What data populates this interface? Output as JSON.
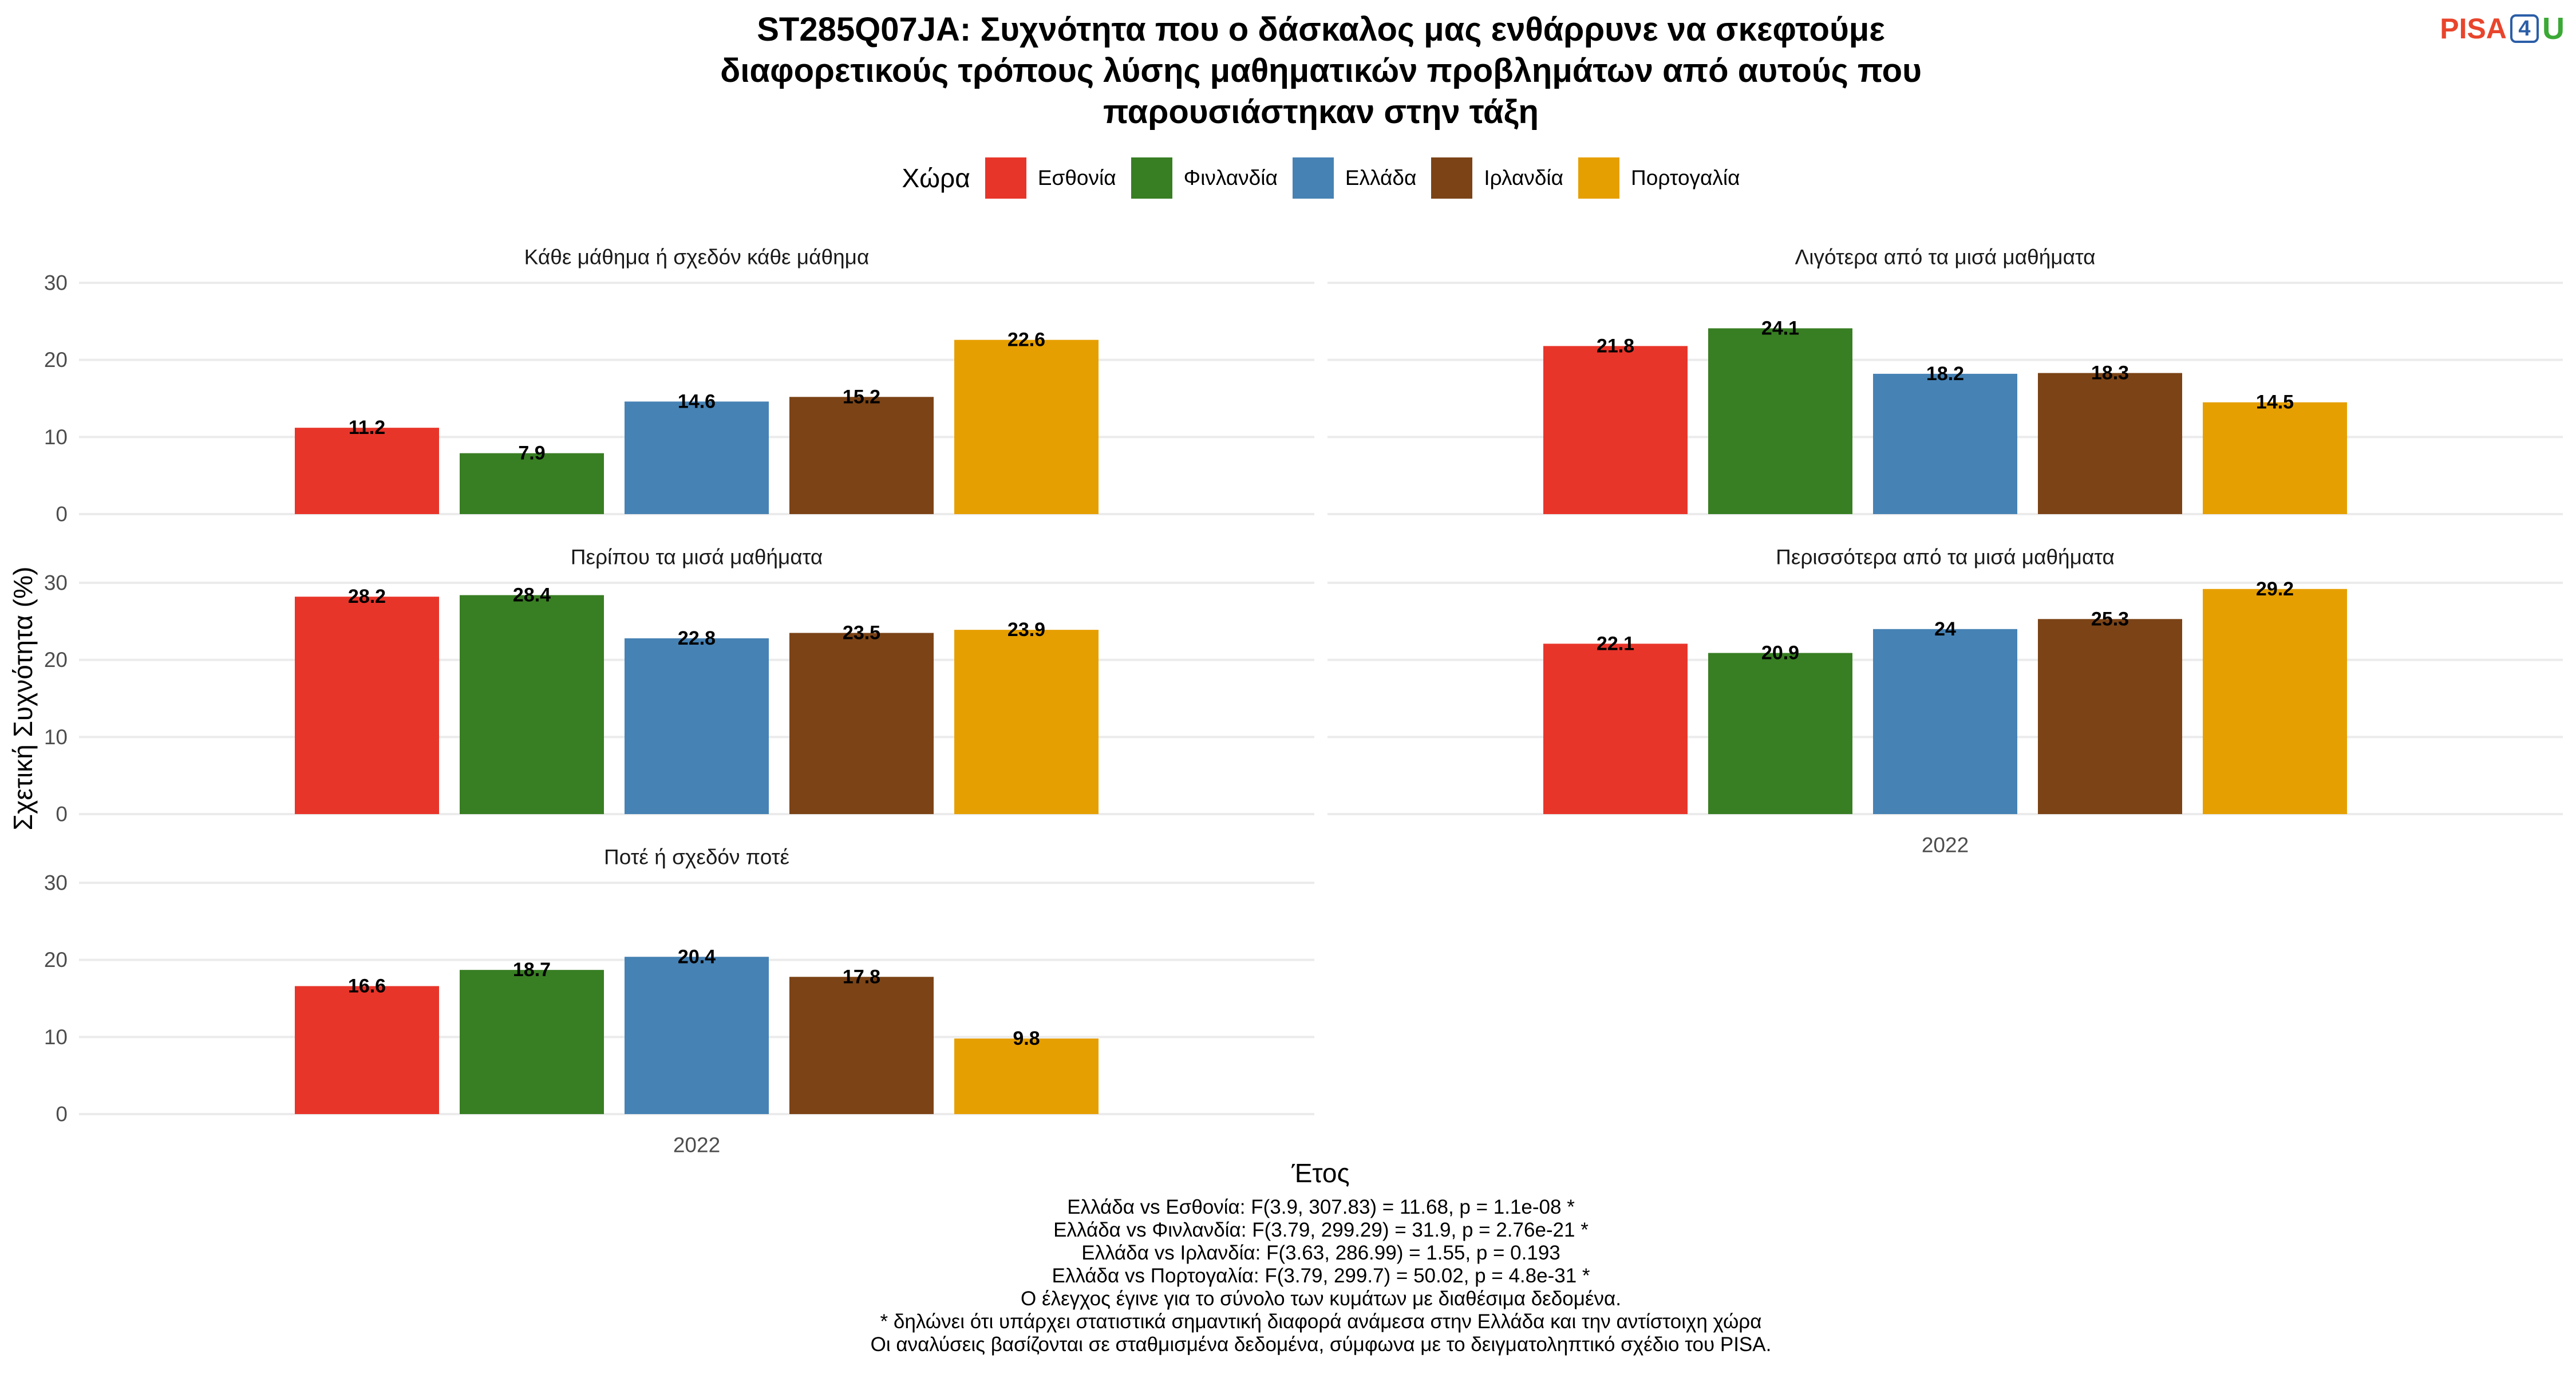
{
  "chart_data": {
    "type": "bar",
    "title": [
      "ST285Q07JA: Συχνότητα που ο δάσκαλος μας ενθάρρυνε να σκεφτούμε",
      "διαφορετικούς τρόπους λύσης μαθηματικών προβλημάτων από αυτούς που",
      "παρουσιάστηκαν στην τάξη"
    ],
    "xlabel": "Έτος",
    "ylabel": "Σχετική Συχνότητα (%)",
    "categories": [
      "2022"
    ],
    "ylim": [
      0,
      30
    ],
    "yticks": [
      0,
      10,
      20,
      30
    ],
    "grid": true,
    "legend": {
      "title": "Χώρα",
      "position": "top"
    },
    "series": [
      {
        "name": "Εσθονία",
        "color": "#E8352A"
      },
      {
        "name": "Φινλανδία",
        "color": "#387E23"
      },
      {
        "name": "Ελλάδα",
        "color": "#4682B4"
      },
      {
        "name": "Ιρλανδία",
        "color": "#7B4316"
      },
      {
        "name": "Πορτογαλία",
        "color": "#E69F00"
      }
    ],
    "facets": [
      {
        "title": "Κάθε μάθημα ή σχεδόν κάθε μάθημα",
        "values": [
          11.2,
          7.9,
          14.6,
          15.2,
          22.6
        ]
      },
      {
        "title": "Λιγότερα από τα μισά μαθήματα",
        "values": [
          21.8,
          24.1,
          18.2,
          18.3,
          14.5
        ]
      },
      {
        "title": "Περίπου τα μισά μαθήματα",
        "values": [
          28.2,
          28.4,
          22.8,
          23.5,
          23.9
        ]
      },
      {
        "title": "Περισσότερα από τα μισά μαθήματα",
        "values": [
          22.1,
          20.9,
          24,
          25.3,
          29.2
        ]
      },
      {
        "title": "Ποτέ ή σχεδόν ποτέ",
        "values": [
          16.6,
          18.7,
          20.4,
          17.8,
          9.8
        ]
      }
    ],
    "caption": [
      "Ελλάδα vs Εσθονία: F(3.9, 307.83) = 11.68, p = 1.1e-08 *",
      "Ελλάδα vs Φινλανδία: F(3.79, 299.29) = 31.9, p = 2.76e-21 *",
      "Ελλάδα vs Ιρλανδία: F(3.63, 286.99) = 1.55, p = 0.193",
      "Ελλάδα vs Πορτογαλία: F(3.79, 299.7) = 50.02, p = 4.8e-31 *",
      "Ο έλεγχος έγινε για το σύνολο των κυμάτων με διαθέσιμα δεδομένα.",
      "* δηλώνει ότι υπάρχει στατιστικά σημαντική διαφορά ανάμεσα στην Ελλάδα και την αντίστοιχη χώρα",
      "Οι αναλύσεις βασίζονται σε σταθμισμένα δεδομένα, σύμφωνα με το δειγματοληπτικό σχέδιο του PISA."
    ]
  },
  "logo": {
    "text": [
      "PISA",
      "4",
      "U"
    ],
    "colors": [
      "#E8452C",
      "#2B5EA7",
      "#3BA935"
    ]
  }
}
